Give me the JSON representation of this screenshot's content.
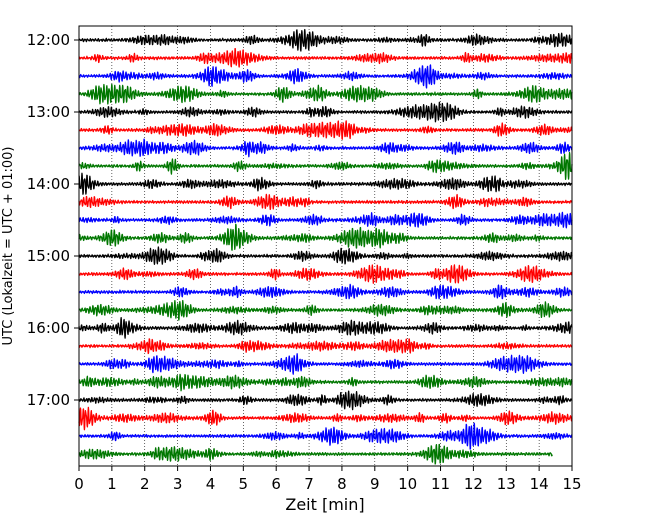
{
  "chart_data": {
    "type": "line",
    "title": "",
    "xlabel": "Zeit  [min]",
    "ylabel": "UTC (Lokalzeit = UTC + 01:00)",
    "xlim": [
      0,
      15
    ],
    "x_ticks": [
      "0",
      "1",
      "2",
      "3",
      "4",
      "5",
      "6",
      "7",
      "8",
      "9",
      "10",
      "11",
      "12",
      "13",
      "14",
      "15"
    ],
    "y_ticks": [
      "12:00",
      "13:00",
      "14:00",
      "15:00",
      "16:00",
      "17:00"
    ],
    "grid": "vertical dotted lines at each minute",
    "legend": "none",
    "trace_interval_minutes": 15,
    "trace_colors": [
      "#000000",
      "#ff0000",
      "#0000ff",
      "#007700"
    ],
    "traces": [
      {
        "start": "12:00",
        "end_min": 15
      },
      {
        "start": "12:15",
        "end_min": 15
      },
      {
        "start": "12:30",
        "end_min": 15
      },
      {
        "start": "12:45",
        "end_min": 15
      },
      {
        "start": "13:00",
        "end_min": 15
      },
      {
        "start": "13:15",
        "end_min": 15
      },
      {
        "start": "13:30",
        "end_min": 15
      },
      {
        "start": "13:45",
        "end_min": 15
      },
      {
        "start": "14:00",
        "end_min": 15
      },
      {
        "start": "14:15",
        "end_min": 15
      },
      {
        "start": "14:30",
        "end_min": 15
      },
      {
        "start": "14:45",
        "end_min": 15
      },
      {
        "start": "15:00",
        "end_min": 15
      },
      {
        "start": "15:15",
        "end_min": 15
      },
      {
        "start": "15:30",
        "end_min": 15
      },
      {
        "start": "15:45",
        "end_min": 15
      },
      {
        "start": "16:00",
        "end_min": 15
      },
      {
        "start": "16:15",
        "end_min": 15
      },
      {
        "start": "16:30",
        "end_min": 15
      },
      {
        "start": "16:45",
        "end_min": 15
      },
      {
        "start": "17:00",
        "end_min": 15
      },
      {
        "start": "17:15",
        "end_min": 15
      },
      {
        "start": "17:30",
        "end_min": 15
      },
      {
        "start": "17:45",
        "end_min": 14.4
      }
    ]
  }
}
